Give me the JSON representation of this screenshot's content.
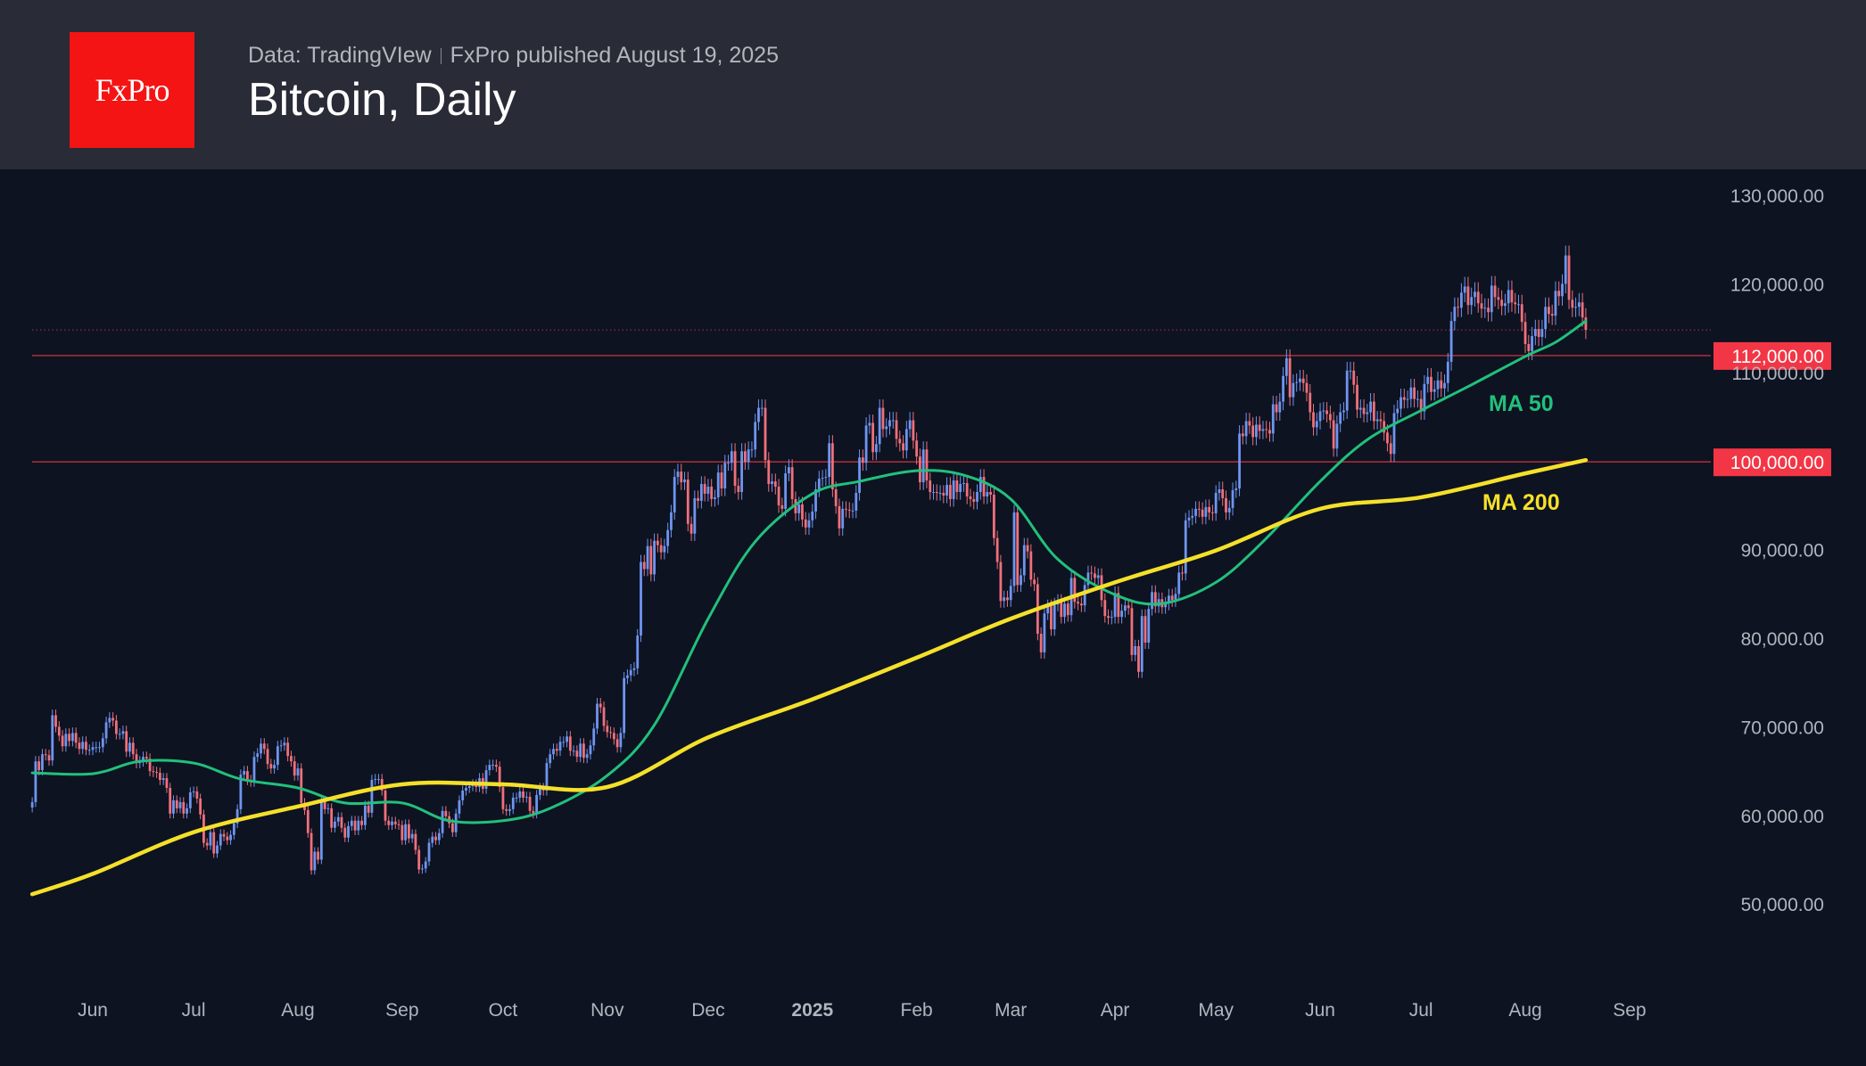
{
  "header": {
    "logo_text": "FxPro",
    "source": "Data: TradingVIew",
    "published": "FxPro published August 19, 2025",
    "title": "Bitcoin, Daily"
  },
  "colors": {
    "up": "#6f95f0",
    "down": "#f0707a",
    "ma50": "#22c07c",
    "ma200": "#f5e02a",
    "level": "#f23645",
    "header_bg": "#292b37",
    "chart_bg": "#0d1321"
  },
  "chart_data": {
    "type": "candlestick",
    "title": "Bitcoin, Daily",
    "ylim": [
      40000,
      135000
    ],
    "y_ticks": [
      {
        "value": 130000,
        "label": "130,000.00"
      },
      {
        "value": 120000,
        "label": "120,000.00"
      },
      {
        "value": 110000,
        "label": "110,000.00"
      },
      {
        "value": 90000,
        "label": "90,000.00"
      },
      {
        "value": 80000,
        "label": "80,000.00"
      },
      {
        "value": 70000,
        "label": "70,000.00"
      },
      {
        "value": 60000,
        "label": "60,000.00"
      },
      {
        "value": 50000,
        "label": "50,000.00"
      }
    ],
    "x_ticks": [
      {
        "label": "Jun",
        "date": "2024-06-01"
      },
      {
        "label": "Jul",
        "date": "2024-07-01"
      },
      {
        "label": "Aug",
        "date": "2024-08-01"
      },
      {
        "label": "Sep",
        "date": "2024-09-01"
      },
      {
        "label": "Oct",
        "date": "2024-10-01"
      },
      {
        "label": "Nov",
        "date": "2024-11-01"
      },
      {
        "label": "Dec",
        "date": "2024-12-01"
      },
      {
        "label": "2025",
        "date": "2025-01-01",
        "bold": true
      },
      {
        "label": "Feb",
        "date": "2025-02-01"
      },
      {
        "label": "Mar",
        "date": "2025-03-01"
      },
      {
        "label": "Apr",
        "date": "2025-04-01"
      },
      {
        "label": "May",
        "date": "2025-05-01"
      },
      {
        "label": "Jun",
        "date": "2025-06-01"
      },
      {
        "label": "Jul",
        "date": "2025-07-01"
      },
      {
        "label": "Aug",
        "date": "2025-08-01"
      },
      {
        "label": "Sep",
        "date": "2025-09-01"
      }
    ],
    "levels": [
      {
        "value": 112000,
        "label": "112,000.00"
      },
      {
        "value": 100000,
        "label": "100,000.00"
      }
    ],
    "last_price": 114900,
    "price_unit": "thousands USD",
    "daily_closes": [
      {
        "month": "2024-05",
        "first_day": 14,
        "close": [
          61.6,
          66.2,
          65.2,
          67.0,
          66.9,
          66.3,
          71.4,
          70.1,
          69.1,
          67.9,
          69.3,
          68.5,
          69.4,
          68.3,
          67.6,
          68.4,
          67.5,
          67.5
        ]
      },
      {
        "month": "2024-06",
        "first_day": 1,
        "close": [
          67.8,
          67.8,
          67.8,
          68.8,
          70.6,
          71.1,
          70.8,
          69.3,
          69.3,
          69.6,
          67.3,
          68.3,
          67.0,
          66.0,
          66.2,
          66.7,
          66.5,
          65.1,
          65.0,
          64.9,
          64.1,
          64.3,
          63.2,
          60.3,
          61.8,
          60.9,
          61.6,
          60.3,
          60.9,
          62.7
        ]
      },
      {
        "month": "2024-07",
        "first_day": 1,
        "close": [
          62.8,
          62.0,
          60.2,
          57.0,
          56.7,
          58.2,
          55.8,
          56.7,
          58.0,
          57.7,
          57.3,
          57.9,
          59.2,
          60.8,
          64.7,
          65.1,
          64.1,
          63.9,
          66.7,
          67.1,
          68.2,
          67.6,
          65.9,
          65.4,
          65.8,
          67.9,
          68.0,
          68.3,
          66.8,
          66.2,
          64.6
        ]
      },
      {
        "month": "2024-08",
        "first_day": 1,
        "close": [
          65.4,
          61.5,
          60.7,
          58.1,
          53.9,
          56.0,
          55.1,
          61.7,
          60.8,
          60.9,
          58.7,
          59.4,
          59.9,
          58.7,
          57.6,
          58.9,
          59.5,
          58.4,
          59.5,
          59.0,
          61.2,
          60.4,
          64.1,
          64.2,
          64.2,
          62.9,
          59.5,
          59.0,
          59.4,
          59.1,
          59.0
        ]
      },
      {
        "month": "2024-09",
        "first_day": 1,
        "close": [
          57.3,
          59.1,
          57.5,
          58.0,
          56.2,
          54.0,
          54.1,
          54.9,
          57.0,
          57.7,
          57.3,
          58.1,
          60.6,
          60.0,
          59.2,
          58.2,
          60.3,
          61.8,
          62.9,
          63.2,
          63.4,
          63.6,
          63.3,
          64.3,
          63.1,
          65.2,
          65.8,
          65.8,
          65.6,
          63.3
        ]
      },
      {
        "month": "2024-10",
        "first_day": 1,
        "close": [
          60.8,
          60.6,
          60.8,
          62.1,
          62.1,
          62.8,
          62.1,
          62.2,
          60.6,
          60.3,
          62.4,
          63.2,
          62.9,
          66.0,
          67.0,
          67.6,
          67.4,
          68.4,
          68.4,
          69.0,
          67.4,
          67.4,
          66.7,
          68.2,
          66.6,
          67.0,
          68.0,
          69.9,
          72.7,
          72.3,
          70.2
        ]
      },
      {
        "month": "2024-11",
        "first_day": 1,
        "close": [
          69.5,
          69.4,
          68.7,
          67.8,
          69.4,
          75.6,
          75.9,
          76.5,
          76.7,
          80.4,
          88.7,
          87.9,
          90.5,
          87.3,
          91.1,
          90.6,
          89.8,
          90.5,
          92.3,
          94.3,
          98.3,
          98.9,
          97.7,
          98.0,
          93.0,
          91.9,
          95.9,
          95.6,
          97.5,
          96.4
        ]
      },
      {
        "month": "2024-12",
        "first_day": 1,
        "close": [
          97.2,
          95.8,
          96.0,
          98.8,
          97.0,
          99.9,
          99.9,
          101.2,
          97.3,
          96.6,
          101.2,
          100.0,
          101.4,
          101.4,
          104.5,
          106.1,
          106.1,
          100.2,
          97.5,
          97.8,
          97.2,
          95.1,
          94.7,
          98.7,
          99.4,
          95.8,
          94.2,
          95.2,
          93.5,
          92.6,
          93.4
        ]
      },
      {
        "month": "2025-01",
        "first_day": 1,
        "close": [
          94.4,
          96.9,
          98.1,
          98.2,
          98.3,
          102.1,
          96.9,
          95.0,
          92.5,
          94.7,
          94.6,
          94.5,
          94.5,
          96.5,
          100.5,
          99.9,
          104.1,
          104.4,
          101.1,
          102.0,
          106.1,
          103.7,
          104.0,
          104.7,
          104.7,
          102.6,
          102.1,
          101.3,
          103.7,
          104.7,
          102.4
        ]
      },
      {
        "month": "2025-02",
        "first_day": 1,
        "close": [
          100.6,
          97.7,
          101.4,
          97.9,
          96.6,
          96.6,
          96.5,
          96.5,
          96.2,
          97.4,
          95.8,
          97.9,
          96.6,
          97.5,
          97.6,
          96.1,
          95.8,
          95.5,
          96.6,
          98.3,
          96.1,
          96.6,
          96.3,
          91.4,
          88.7,
          84.3,
          84.7,
          84.4
        ]
      },
      {
        "month": "2025-03",
        "first_day": 1,
        "close": [
          86.0,
          94.3,
          86.1,
          87.2,
          90.6,
          89.9,
          86.7,
          86.2,
          80.6,
          78.5,
          82.9,
          83.7,
          81.1,
          83.9,
          84.3,
          82.5,
          84.0,
          82.7,
          86.9,
          84.2,
          84.0,
          83.8,
          86.1,
          87.5,
          87.4,
          86.9,
          87.2,
          84.4,
          82.6,
          82.4,
          82.5
        ]
      },
      {
        "month": "2025-04",
        "first_day": 1,
        "close": [
          85.2,
          82.5,
          83.2,
          83.8,
          83.5,
          78.2,
          79.2,
          76.3,
          82.6,
          79.6,
          83.4,
          85.3,
          83.7,
          84.5,
          83.6,
          84.0,
          84.9,
          84.4,
          85.1,
          87.5,
          87.4,
          93.4,
          93.7,
          93.9,
          94.7,
          94.6,
          93.8,
          94.9,
          94.3,
          94.2
        ]
      },
      {
        "month": "2025-05",
        "first_day": 1,
        "close": [
          96.5,
          96.9,
          95.9,
          94.3,
          94.8,
          96.8,
          97.0,
          103.2,
          102.9,
          104.6,
          104.1,
          102.8,
          104.2,
          103.5,
          103.7,
          103.6,
          103.2,
          106.5,
          105.6,
          106.8,
          109.7,
          111.7,
          107.3,
          108.9,
          109.0,
          109.4,
          108.9,
          107.8,
          105.6,
          103.9,
          104.6
        ]
      },
      {
        "month": "2025-06",
        "first_day": 1,
        "close": [
          105.7,
          105.8,
          105.4,
          104.7,
          101.5,
          104.3,
          105.6,
          105.8,
          110.3,
          110.3,
          108.7,
          105.9,
          106.1,
          105.4,
          105.6,
          106.8,
          104.6,
          104.8,
          104.6,
          103.3,
          102.1,
          100.9,
          105.5,
          106.0,
          107.3,
          107.0,
          107.1,
          108.4,
          107.1,
          107.1
        ]
      },
      {
        "month": "2025-07",
        "first_day": 1,
        "close": [
          105.7,
          108.8,
          109.6,
          107.9,
          108.2,
          109.2,
          108.3,
          108.9,
          111.3,
          115.9,
          117.5,
          117.4,
          119.1,
          119.8,
          117.7,
          118.6,
          119.2,
          117.9,
          117.3,
          117.4,
          116.9,
          119.9,
          118.6,
          118.3,
          117.6,
          117.9,
          119.4,
          118.0,
          117.8,
          117.8,
          115.8
        ]
      },
      {
        "month": "2025-08",
        "first_day": 1,
        "close": [
          113.3,
          112.5,
          114.2,
          115.0,
          114.1,
          115.0,
          117.5,
          116.7,
          116.5,
          119.3,
          118.7,
          120.1,
          123.3,
          118.3,
          117.4,
          117.5,
          118.0,
          116.3,
          114.9
        ]
      }
    ],
    "series": [
      {
        "name": "MA 50",
        "points": [
          [
            "2024-05-14",
            64.9
          ],
          [
            "2024-06-01",
            64.8
          ],
          [
            "2024-06-15",
            66.2
          ],
          [
            "2024-07-01",
            66.0
          ],
          [
            "2024-07-15",
            64.2
          ],
          [
            "2024-08-01",
            63.2
          ],
          [
            "2024-08-15",
            61.5
          ],
          [
            "2024-09-01",
            61.5
          ],
          [
            "2024-09-15",
            59.5
          ],
          [
            "2024-10-01",
            59.5
          ],
          [
            "2024-10-15",
            60.9
          ],
          [
            "2024-11-01",
            64.6
          ],
          [
            "2024-11-15",
            70.3
          ],
          [
            "2024-12-01",
            82.3
          ],
          [
            "2024-12-15",
            91.0
          ],
          [
            "2025-01-01",
            96.4
          ],
          [
            "2025-01-15",
            97.8
          ],
          [
            "2025-02-01",
            99.0
          ],
          [
            "2025-02-15",
            98.5
          ],
          [
            "2025-03-01",
            95.8
          ],
          [
            "2025-03-15",
            89.0
          ],
          [
            "2025-04-01",
            85.0
          ],
          [
            "2025-04-15",
            84.0
          ],
          [
            "2025-05-01",
            86.4
          ],
          [
            "2025-05-15",
            91.0
          ],
          [
            "2025-06-01",
            97.8
          ],
          [
            "2025-06-15",
            102.5
          ],
          [
            "2025-07-01",
            105.8
          ],
          [
            "2025-07-15",
            108.5
          ],
          [
            "2025-08-01",
            111.9
          ],
          [
            "2025-08-10",
            113.5
          ],
          [
            "2025-08-19",
            115.9
          ]
        ]
      },
      {
        "name": "MA 200",
        "points": [
          [
            "2024-05-14",
            51.2
          ],
          [
            "2024-06-01",
            53.5
          ],
          [
            "2024-07-01",
            58.2
          ],
          [
            "2024-08-01",
            61.1
          ],
          [
            "2024-09-01",
            63.6
          ],
          [
            "2024-10-01",
            63.6
          ],
          [
            "2024-11-01",
            63.3
          ],
          [
            "2024-12-01",
            68.9
          ],
          [
            "2025-01-01",
            73.2
          ],
          [
            "2025-02-01",
            77.9
          ],
          [
            "2025-03-01",
            82.3
          ],
          [
            "2025-04-01",
            86.4
          ],
          [
            "2025-05-01",
            90.0
          ],
          [
            "2025-06-01",
            94.7
          ],
          [
            "2025-07-01",
            96.0
          ],
          [
            "2025-08-01",
            98.7
          ],
          [
            "2025-08-19",
            100.2
          ]
        ]
      }
    ]
  }
}
